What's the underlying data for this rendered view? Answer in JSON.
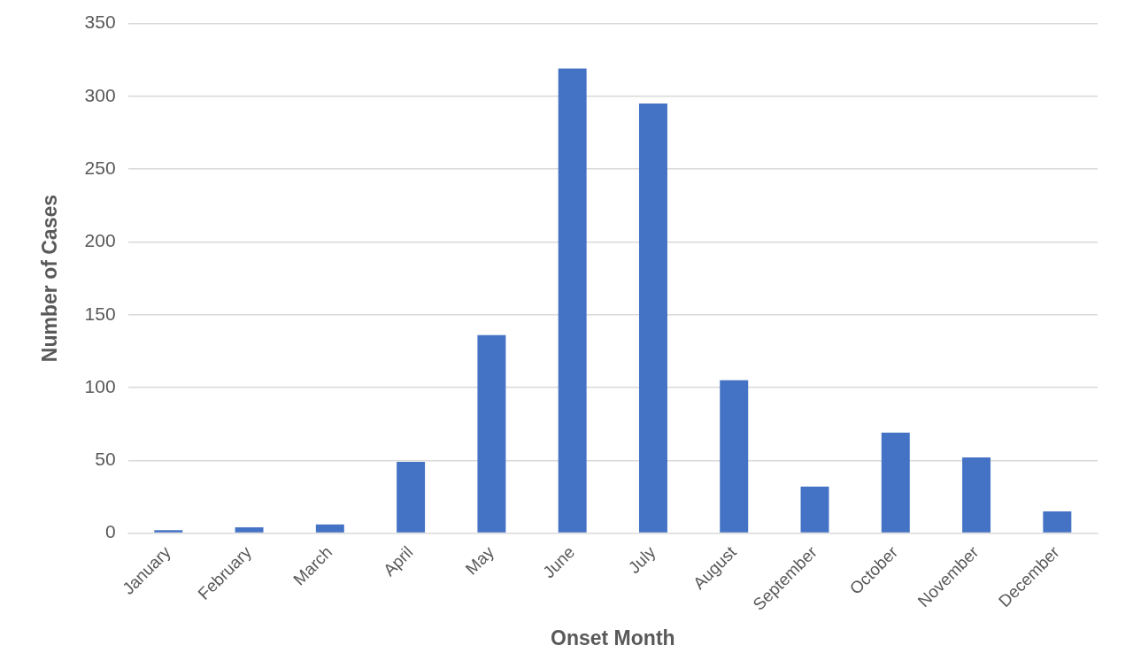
{
  "chart_data": {
    "type": "bar",
    "x_label": "Onset Month",
    "y_label": "Number of Cases",
    "categories": [
      "January",
      "February",
      "March",
      "April",
      "May",
      "June",
      "July",
      "August",
      "September",
      "October",
      "November",
      "December"
    ],
    "values": [
      2,
      4,
      6,
      49,
      136,
      319,
      295,
      105,
      32,
      69,
      52,
      15
    ],
    "color": "#4472c4",
    "ylim": [
      0,
      350
    ],
    "yticks": [
      0,
      50,
      100,
      150,
      200,
      250,
      300,
      350
    ],
    "grid": true
  }
}
